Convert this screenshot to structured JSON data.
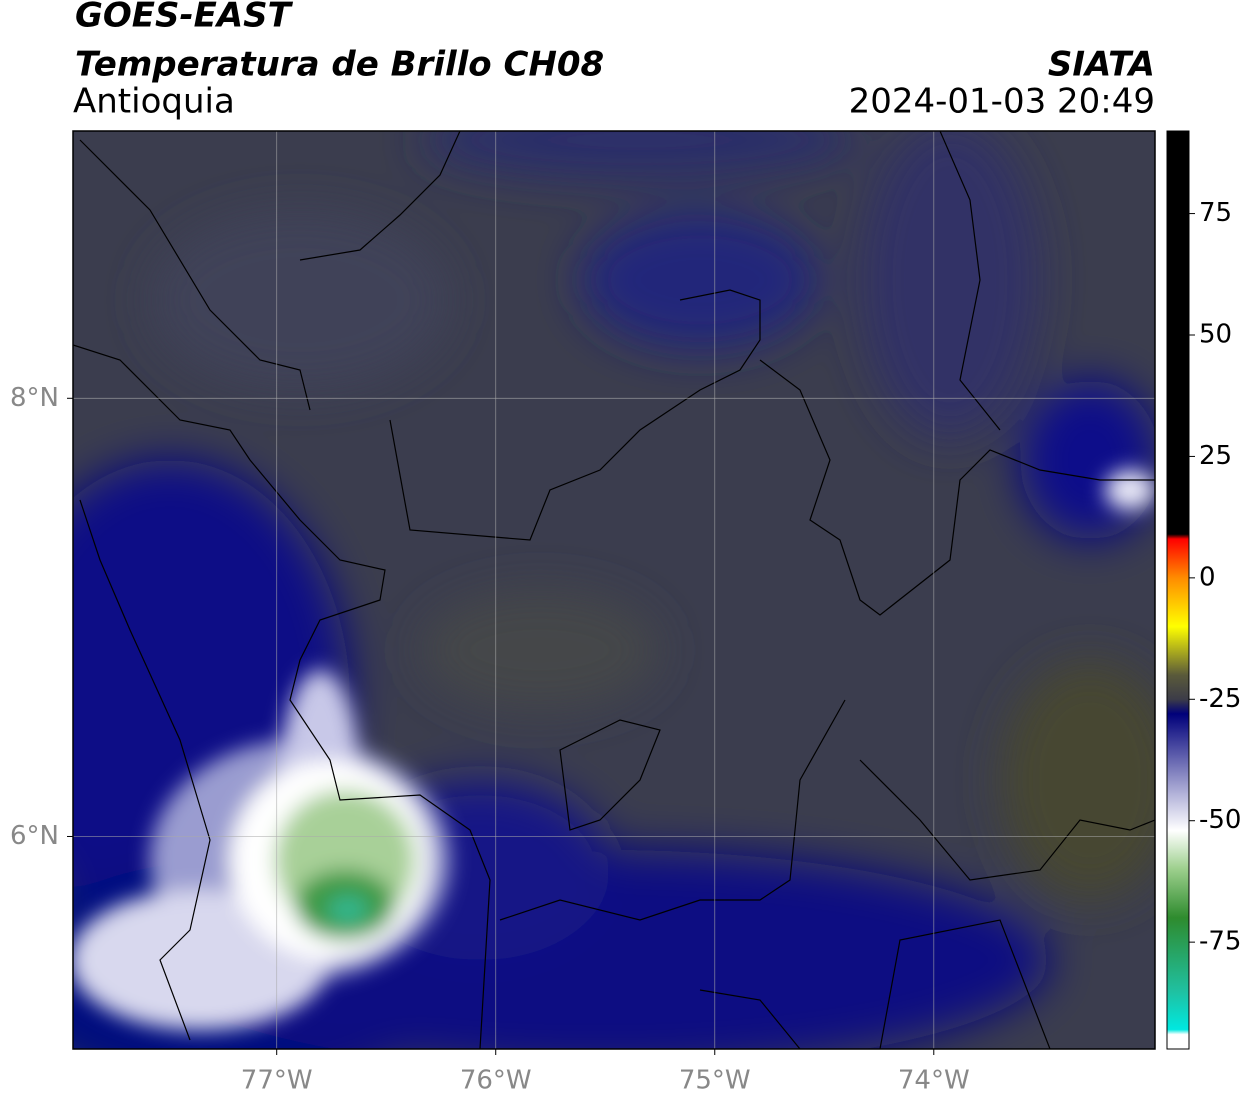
{
  "chart_data": {
    "type": "map",
    "title": "GOES-EAST",
    "subtitle": "Temperatura de Brillo CH08",
    "region": "Antioquia",
    "source": "SIATA",
    "datetime": "2024-01-03 20:49",
    "xlim": [
      -77.93,
      -72.99
    ],
    "ylim": [
      5.03,
      9.22
    ],
    "xticks": [
      {
        "value": -77,
        "label": "77°W"
      },
      {
        "value": -76,
        "label": "76°W"
      },
      {
        "value": -75,
        "label": "75°W"
      },
      {
        "value": -74,
        "label": "74°W"
      }
    ],
    "yticks": [
      {
        "value": 6,
        "label": "6°N"
      },
      {
        "value": 8,
        "label": "8°N"
      }
    ],
    "grid": true,
    "colorbar": {
      "clim": [
        -97,
        92
      ],
      "ticks": [
        75,
        50,
        25,
        0,
        -25,
        -50,
        -75
      ],
      "stops": [
        {
          "value": 92,
          "color": "#000000"
        },
        {
          "value": 9,
          "color": "#000000"
        },
        {
          "value": 8,
          "color": "#ff0000"
        },
        {
          "value": 0,
          "color": "#ff8c00"
        },
        {
          "value": -10,
          "color": "#ffff00"
        },
        {
          "value": -20,
          "color": "#5a5a3a"
        },
        {
          "value": -25,
          "color": "#3c3c48"
        },
        {
          "value": -28,
          "color": "#00007a"
        },
        {
          "value": -45,
          "color": "#b8b8dc"
        },
        {
          "value": -52,
          "color": "#ffffff"
        },
        {
          "value": -60,
          "color": "#9ccf8c"
        },
        {
          "value": -70,
          "color": "#2e8b2e"
        },
        {
          "value": -85,
          "color": "#20c0a0"
        },
        {
          "value": -93,
          "color": "#00e8e0"
        },
        {
          "value": -94,
          "color": "#ffffff"
        },
        {
          "value": -97,
          "color": "#ffffff"
        }
      ]
    }
  }
}
